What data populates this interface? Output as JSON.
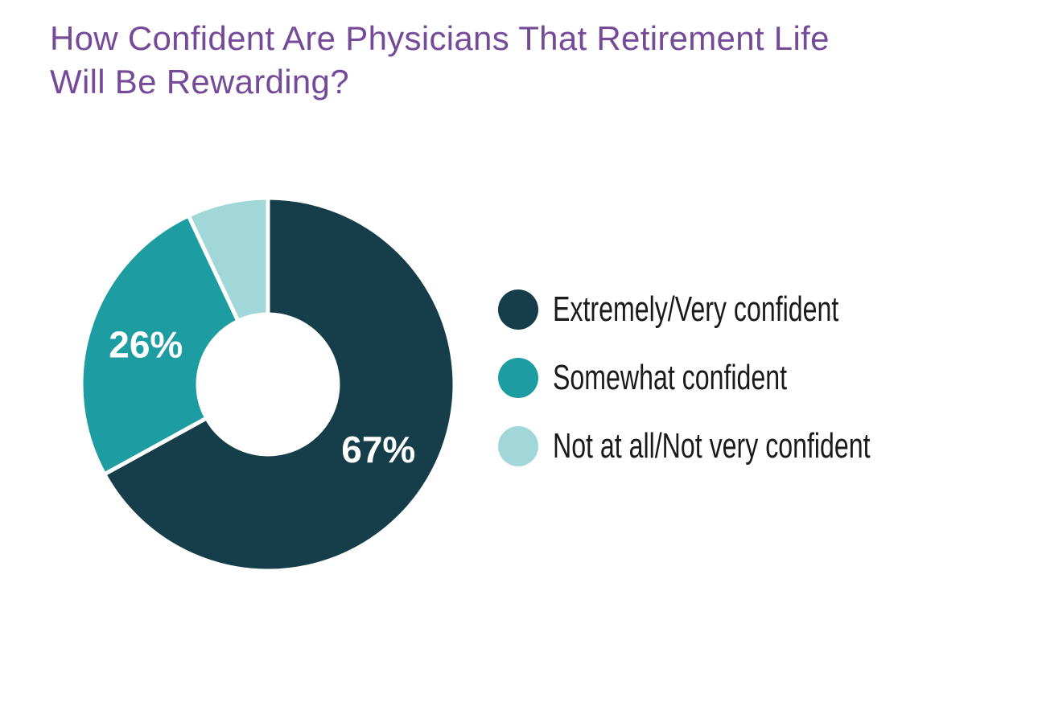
{
  "title": {
    "lines": [
      "How Confident Are Physicians That Retirement Life",
      "Will Be Rewarding?"
    ],
    "full_text": "How Confident Are Physicians That Retirement Life Will Be Rewarding?",
    "color": "#754A99"
  },
  "chart_data": {
    "type": "pie",
    "subtype": "donut",
    "title": "How Confident Are Physicians That Retirement Life Will Be Rewarding?",
    "unit": "%",
    "start_angle_deg": 0,
    "direction": "clockwise",
    "inner_radius_ratio": 0.375,
    "slice_gap_color": "#ffffff",
    "label_color": "#ffffff",
    "legend_position": "right",
    "slices": [
      {
        "label": "Extremely/Very confident",
        "value": 67,
        "display_label": "67%",
        "color": "#153E4A"
      },
      {
        "label": "Somewhat confident",
        "value": 26,
        "display_label": "26%",
        "color": "#1D9DA1"
      },
      {
        "label": "Not at all/Not very confident",
        "value": 7,
        "display_label": "",
        "color": "#A2D7DA"
      }
    ]
  },
  "legend": {
    "text_color": "#1a1a1a",
    "items": [
      {
        "label": "Extremely/Very confident",
        "color": "#153E4A"
      },
      {
        "label": "Somewhat confident",
        "color": "#1D9DA1"
      },
      {
        "label": "Not at all/Not very confident",
        "color": "#A2D7DA"
      }
    ]
  }
}
